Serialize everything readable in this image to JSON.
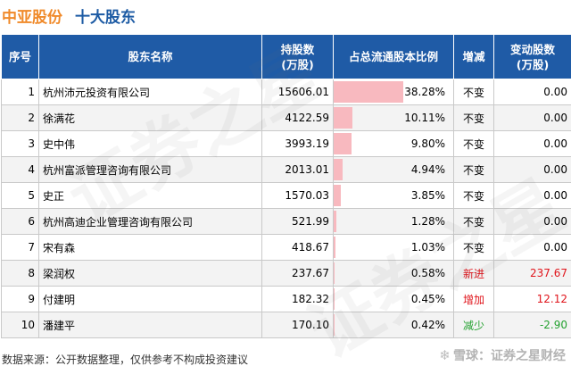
{
  "header": {
    "company": "中亚股份",
    "subtitle": "十大股东"
  },
  "table": {
    "columns": {
      "rank": "序号",
      "name": "股东名称",
      "shares_line1": "持股数",
      "shares_line2": "(万股)",
      "ratio": "占总流通股本比例",
      "change": "增减",
      "delta_line1": "变动股数",
      "delta_line2": "(万股)"
    },
    "rows": [
      {
        "rank": "1",
        "name": "杭州沛元投资有限公司",
        "shares": "15606.01",
        "ratio": "38.28%",
        "ratio_value": 38.28,
        "change": "不变",
        "change_type": "flat",
        "delta": "0.00"
      },
      {
        "rank": "2",
        "name": "徐满花",
        "shares": "4122.59",
        "ratio": "10.11%",
        "ratio_value": 10.11,
        "change": "不变",
        "change_type": "flat",
        "delta": "0.00"
      },
      {
        "rank": "3",
        "name": "史中伟",
        "shares": "3993.19",
        "ratio": "9.80%",
        "ratio_value": 9.8,
        "change": "不变",
        "change_type": "flat",
        "delta": "0.00"
      },
      {
        "rank": "4",
        "name": "杭州富派管理咨询有限公司",
        "shares": "2013.01",
        "ratio": "4.94%",
        "ratio_value": 4.94,
        "change": "不变",
        "change_type": "flat",
        "delta": "0.00"
      },
      {
        "rank": "5",
        "name": "史正",
        "shares": "1570.03",
        "ratio": "3.85%",
        "ratio_value": 3.85,
        "change": "不变",
        "change_type": "flat",
        "delta": "0.00"
      },
      {
        "rank": "6",
        "name": "杭州高迪企业管理咨询有限公司",
        "shares": "521.99",
        "ratio": "1.28%",
        "ratio_value": 1.28,
        "change": "不变",
        "change_type": "flat",
        "delta": "0.00"
      },
      {
        "rank": "7",
        "name": "宋有森",
        "shares": "418.67",
        "ratio": "1.03%",
        "ratio_value": 1.03,
        "change": "不变",
        "change_type": "flat",
        "delta": "0.00"
      },
      {
        "rank": "8",
        "name": "梁润权",
        "shares": "237.67",
        "ratio": "0.58%",
        "ratio_value": 0.58,
        "change": "新进",
        "change_type": "new",
        "delta": "237.67"
      },
      {
        "rank": "9",
        "name": "付建明",
        "shares": "182.32",
        "ratio": "0.45%",
        "ratio_value": 0.45,
        "change": "增加",
        "change_type": "inc",
        "delta": "12.12"
      },
      {
        "rank": "10",
        "name": "潘建平",
        "shares": "170.10",
        "ratio": "0.42%",
        "ratio_value": 0.42,
        "change": "减少",
        "change_type": "dec",
        "delta": "-2.90"
      }
    ]
  },
  "colors": {
    "header_bg": "#1f5ba6",
    "bar": "#f8b9bf",
    "company_title": "#f08a2a",
    "subtitle": "#1d5ba4",
    "increase": "#e0141b",
    "decrease": "#23a12f"
  },
  "footer": {
    "source": "数据来源：公开数据整理，仅供参考不构成投资建议"
  },
  "brand": {
    "icon": "snowball-icon",
    "text": "雪球：证券之星财经"
  },
  "watermark": {
    "text": "证券之星"
  }
}
